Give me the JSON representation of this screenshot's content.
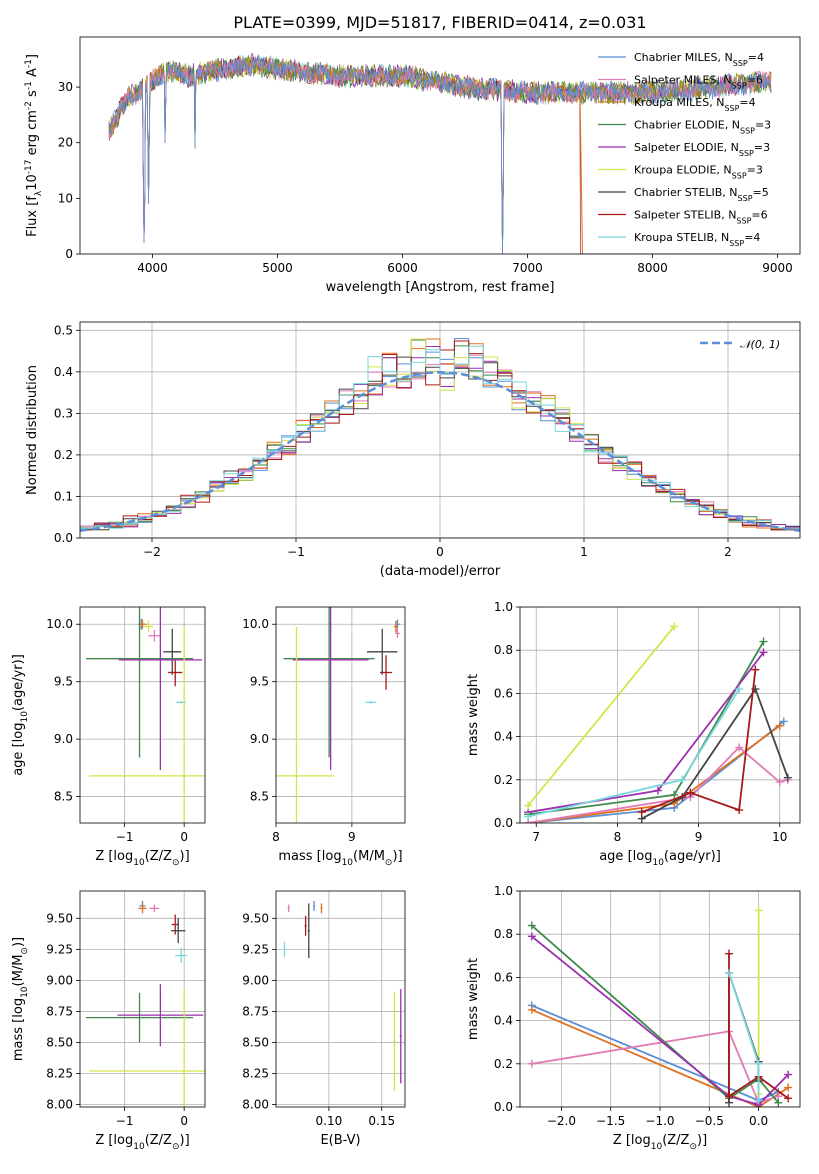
{
  "figure": {
    "title": "PLATE=0399, MJD=51817, FIBERID=0414, z=0.031"
  },
  "chart_data": [
    {
      "id": "spectrum",
      "type": "line",
      "xlabel": "wavelength [Angstrom, rest frame]",
      "ylabel": "Flux [f$_\\lambda$10$^{-17}$ erg cm$^{-2}$ s$^{-1}$ A$^{-1}$]",
      "xlim": [
        3420,
        9180
      ],
      "ylim": [
        0,
        39
      ],
      "xticks": [
        4000,
        5000,
        6000,
        7000,
        8000,
        9000
      ],
      "yticks": [
        0,
        10,
        20,
        30
      ],
      "legend_position": "top-right",
      "series": [
        {
          "name": "Chabrier MILES, N$_{SSP}$=4",
          "color": "#5b8fd6"
        },
        {
          "name": "Salpeter MILES, N$_{SSP}$=6",
          "color": "#e07bb5"
        },
        {
          "name": "Kroupa MILES, N$_{SSP}$=4",
          "color": "#b8860b"
        },
        {
          "name": "Chabrier ELODIE, N$_{SSP}$=3",
          "color": "#3f8a4a"
        },
        {
          "name": "Salpeter ELODIE, N$_{SSP}$=3",
          "color": "#9b2fae"
        },
        {
          "name": "Kroupa ELODIE, N$_{SSP}$=3",
          "color": "#d6e34a"
        },
        {
          "name": "Chabrier STELIB, N$_{SSP}$=5",
          "color": "#444444"
        },
        {
          "name": "Salpeter STELIB, N$_{SSP}$=6",
          "color": "#a81919"
        },
        {
          "name": "Kroupa STELIB, N$_{SSP}$=4",
          "color": "#79d6dd"
        }
      ],
      "continuum": {
        "x": [
          3650,
          3800,
          3950,
          4100,
          4300,
          4500,
          4800,
          5100,
          5500,
          6000,
          6500,
          7000,
          7500,
          8000,
          8500,
          8900
        ],
        "y": [
          22,
          28,
          30,
          33,
          32,
          33,
          34,
          33,
          32,
          32,
          30,
          29,
          29,
          29,
          30,
          31
        ]
      },
      "absorption_lines": [
        {
          "x": 3933,
          "y": 0
        },
        {
          "x": 3968,
          "y": 9
        },
        {
          "x": 4101,
          "y": 18
        },
        {
          "x": 4340,
          "y": 19
        },
        {
          "x": 5430,
          "y": 27
        },
        {
          "x": 6300,
          "y": 27
        },
        {
          "x": 6800,
          "y": 0
        }
      ],
      "orange_drop_x": 7420
    },
    {
      "id": "residuals",
      "type": "histogram",
      "xlabel": "(data-model)/error",
      "ylabel": "Normed distribution",
      "xlim": [
        -2.5,
        2.5
      ],
      "ylim": [
        0,
        0.52
      ],
      "xticks": [
        -2,
        -1,
        0,
        1,
        2
      ],
      "yticks": [
        0.0,
        0.1,
        0.2,
        0.3,
        0.4,
        0.5
      ],
      "legend": [
        {
          "name": "$\\mathcal{N}(0, 1)$",
          "color": "#5b8fd6",
          "style": "dashed"
        }
      ],
      "series_colors": [
        "#5b8fd6",
        "#e07bb5",
        "#e0701f",
        "#3f8a4a",
        "#9b2fae",
        "#d6e34a",
        "#444444",
        "#a81919",
        "#79d6dd"
      ]
    },
    {
      "id": "age_vs_Z",
      "type": "errorbar",
      "xlabel": "Z [log$_{10}$(Z/Z$_\\odot$)]",
      "ylabel": "age  [log$_{10}$(age/yr)]",
      "xlim": [
        -1.75,
        0.35
      ],
      "ylim": [
        8.27,
        10.15
      ],
      "xticks": [
        -1,
        0
      ],
      "yticks": [
        8.5,
        9.0,
        9.5,
        10.0
      ],
      "points": [
        {
          "x": -0.72,
          "y": 10.0,
          "xe": 0.05,
          "ye": 0.05,
          "color": "#5b8fd6"
        },
        {
          "x": -0.7,
          "y": 10.0,
          "xe": 0.07,
          "ye": 0.04,
          "color": "#e0701f"
        },
        {
          "x": -0.6,
          "y": 9.98,
          "xe": 0.08,
          "ye": 0.05,
          "color": "#d6e34a"
        },
        {
          "x": -0.5,
          "y": 9.9,
          "xe": 0.1,
          "ye": 0.05,
          "color": "#e07bb5"
        },
        {
          "x": -0.2,
          "y": 9.76,
          "xe": 0.15,
          "ye": 0.2,
          "color": "#444444"
        },
        {
          "x": -0.15,
          "y": 9.58,
          "xe": 0.12,
          "ye": 0.12,
          "color": "#a81919"
        },
        {
          "x": -0.05,
          "y": 9.32,
          "xe": 0.08,
          "ye": 0.01,
          "color": "#79d6dd"
        },
        {
          "x": -0.75,
          "y": 9.7,
          "xe": 0.9,
          "ye": 0.86,
          "color": "#3f8a4a"
        },
        {
          "x": -0.4,
          "y": 9.69,
          "xe": 0.7,
          "ye": 0.96,
          "color": "#9b2fae"
        },
        {
          "x": 0.0,
          "y": 8.68,
          "xe": 1.6,
          "ye": 1.3,
          "color": "#d6e34a"
        }
      ]
    },
    {
      "id": "age_vs_mass",
      "type": "errorbar",
      "xlabel": "mass [log$_{10}$(M/M$_\\odot$)]",
      "xlim": [
        8.0,
        9.7
      ],
      "ylim": [
        8.27,
        10.15
      ],
      "xticks": [
        8,
        9
      ],
      "yticks": [
        8.5,
        9.0,
        9.5,
        10.0
      ],
      "points": [
        {
          "x": 9.6,
          "y": 10.0,
          "xe": 0.03,
          "ye": 0.04,
          "color": "#5b8fd6"
        },
        {
          "x": 9.58,
          "y": 9.98,
          "xe": 0.03,
          "ye": 0.05,
          "color": "#e0701f"
        },
        {
          "x": 9.6,
          "y": 9.92,
          "xe": 0.03,
          "ye": 0.04,
          "color": "#e07bb5"
        },
        {
          "x": 9.4,
          "y": 9.76,
          "xe": 0.2,
          "ye": 0.2,
          "color": "#444444"
        },
        {
          "x": 9.45,
          "y": 9.58,
          "xe": 0.08,
          "ye": 0.15,
          "color": "#a81919"
        },
        {
          "x": 9.25,
          "y": 9.32,
          "xe": 0.07,
          "ye": 0.01,
          "color": "#79d6dd"
        },
        {
          "x": 8.7,
          "y": 9.7,
          "xe": 0.6,
          "ye": 0.86,
          "color": "#3f8a4a"
        },
        {
          "x": 8.72,
          "y": 9.69,
          "xe": 0.5,
          "ye": 0.96,
          "color": "#9b2fae"
        },
        {
          "x": 8.27,
          "y": 8.68,
          "xe": 0.5,
          "ye": 1.3,
          "color": "#d6e34a"
        }
      ]
    },
    {
      "id": "massweight_vs_age",
      "type": "line",
      "xlabel": "age  [log$_{10}$(age/yr)]",
      "ylabel": "mass weight",
      "xlim": [
        6.8,
        10.25
      ],
      "ylim": [
        0,
        1.0
      ],
      "xticks": [
        7,
        8,
        9,
        10
      ],
      "yticks": [
        0.0,
        0.2,
        0.4,
        0.6,
        0.8,
        1.0
      ],
      "series": [
        {
          "color": "#5b8fd6",
          "x": [
            6.9,
            8.7,
            10.05
          ],
          "y": [
            0.0,
            0.07,
            0.47
          ]
        },
        {
          "color": "#e0701f",
          "x": [
            6.9,
            8.7,
            10.0
          ],
          "y": [
            0.0,
            0.09,
            0.45
          ]
        },
        {
          "color": "#e07bb5",
          "x": [
            6.9,
            8.9,
            9.5,
            10.0,
            10.1
          ],
          "y": [
            0.0,
            0.12,
            0.35,
            0.19,
            0.2
          ]
        },
        {
          "color": "#3f8a4a",
          "x": [
            6.9,
            8.7,
            9.8
          ],
          "y": [
            0.04,
            0.13,
            0.84
          ]
        },
        {
          "color": "#9b2fae",
          "x": [
            6.9,
            8.5,
            9.8
          ],
          "y": [
            0.05,
            0.15,
            0.79
          ]
        },
        {
          "color": "#d6e34a",
          "x": [
            6.9,
            8.7
          ],
          "y": [
            0.08,
            0.91
          ]
        },
        {
          "color": "#444444",
          "x": [
            8.3,
            8.8,
            9.7,
            10.1
          ],
          "y": [
            0.02,
            0.12,
            0.62,
            0.21
          ]
        },
        {
          "color": "#a81919",
          "x": [
            8.3,
            8.9,
            9.5,
            9.7
          ],
          "y": [
            0.05,
            0.14,
            0.06,
            0.71
          ]
        },
        {
          "color": "#79d6dd",
          "x": [
            6.9,
            8.8,
            9.5
          ],
          "y": [
            0.03,
            0.2,
            0.62
          ]
        }
      ]
    },
    {
      "id": "mass_vs_Z",
      "type": "errorbar",
      "xlabel": "Z [log$_{10}$(Z/Z$_\\odot$)]",
      "ylabel": "mass [log$_{10}$(M/M$_\\odot$)]",
      "xlim": [
        -1.75,
        0.35
      ],
      "ylim": [
        7.98,
        9.72
      ],
      "xticks": [
        -1,
        0
      ],
      "yticks": [
        8.0,
        8.25,
        8.5,
        8.75,
        9.0,
        9.25,
        9.5
      ],
      "points": [
        {
          "x": -0.7,
          "y": 9.6,
          "xe": 0.05,
          "ye": 0.04,
          "color": "#5b8fd6"
        },
        {
          "x": -0.7,
          "y": 9.58,
          "xe": 0.07,
          "ye": 0.04,
          "color": "#e0701f"
        },
        {
          "x": -0.5,
          "y": 9.58,
          "xe": 0.08,
          "ye": 0.03,
          "color": "#e07bb5"
        },
        {
          "x": -0.15,
          "y": 9.45,
          "xe": 0.06,
          "ye": 0.08,
          "color": "#a81919"
        },
        {
          "x": -0.1,
          "y": 9.4,
          "xe": 0.12,
          "ye": 0.1,
          "color": "#444444"
        },
        {
          "x": -0.05,
          "y": 9.2,
          "xe": 0.1,
          "ye": 0.06,
          "color": "#79d6dd"
        },
        {
          "x": -0.75,
          "y": 8.7,
          "xe": 0.9,
          "ye": 0.2,
          "color": "#3f8a4a"
        },
        {
          "x": -0.4,
          "y": 8.72,
          "xe": 0.72,
          "ye": 0.25,
          "color": "#9b2fae"
        },
        {
          "x": 0.0,
          "y": 8.27,
          "xe": 1.6,
          "ye": 0.65,
          "color": "#d6e34a"
        }
      ]
    },
    {
      "id": "mass_vs_EBV",
      "type": "errorbar",
      "xlabel": "E(B-V)",
      "xlim": [
        0.05,
        0.172
      ],
      "ylim": [
        7.98,
        9.72
      ],
      "xticks": [
        0.1,
        0.15
      ],
      "yticks": [
        8.0,
        8.25,
        8.5,
        8.75,
        9.0,
        9.25,
        9.5
      ],
      "points": [
        {
          "x": 0.086,
          "y": 9.6,
          "xe": 0.001,
          "ye": 0.04,
          "color": "#5b8fd6"
        },
        {
          "x": 0.093,
          "y": 9.58,
          "xe": 0.001,
          "ye": 0.04,
          "color": "#e0701f"
        },
        {
          "x": 0.062,
          "y": 9.58,
          "xe": 0.001,
          "ye": 0.03,
          "color": "#e07bb5"
        },
        {
          "x": 0.078,
          "y": 9.44,
          "xe": 0.001,
          "ye": 0.08,
          "color": "#a81919"
        },
        {
          "x": 0.081,
          "y": 9.4,
          "xe": 0.001,
          "ye": 0.22,
          "color": "#444444"
        },
        {
          "x": 0.058,
          "y": 9.25,
          "xe": 0.001,
          "ye": 0.06,
          "color": "#79d6dd"
        },
        {
          "x": 0.168,
          "y": 8.55,
          "xe": 0.001,
          "ye": 0.38,
          "color": "#9b2fae"
        },
        {
          "x": 0.162,
          "y": 8.51,
          "xe": 0.001,
          "ye": 0.4,
          "color": "#d6e34a"
        }
      ]
    },
    {
      "id": "massweight_vs_Z",
      "type": "line",
      "xlabel": "Z [log$_{10}$(Z/Z$_\\odot$)]",
      "ylabel": "mass weight",
      "xlim": [
        -2.42,
        0.42
      ],
      "ylim": [
        0,
        1.0
      ],
      "xticks": [
        -2.0,
        -1.5,
        -1.0,
        -0.5,
        0.0
      ],
      "yticks": [
        0.0,
        0.2,
        0.4,
        0.6,
        0.8,
        1.0
      ],
      "series": [
        {
          "color": "#5b8fd6",
          "x": [
            -2.3,
            0.0,
            0.2
          ],
          "y": [
            0.47,
            0.03,
            0.07
          ]
        },
        {
          "color": "#e0701f",
          "x": [
            -2.3,
            0.0,
            0.3
          ],
          "y": [
            0.45,
            0.0,
            0.09
          ]
        },
        {
          "color": "#e07bb5",
          "x": [
            -2.3,
            -0.3,
            0.0,
            0.2
          ],
          "y": [
            0.2,
            0.35,
            0.02,
            0.05
          ]
        },
        {
          "color": "#3f8a4a",
          "x": [
            -2.3,
            -0.3,
            0.0,
            0.2
          ],
          "y": [
            0.84,
            0.04,
            0.13,
            0.02
          ]
        },
        {
          "color": "#9b2fae",
          "x": [
            -2.3,
            -0.3,
            0.0,
            0.3
          ],
          "y": [
            0.79,
            0.05,
            0.01,
            0.15
          ]
        },
        {
          "color": "#d6e34a",
          "x": [
            0.0,
            0.0
          ],
          "y": [
            0.91,
            0.06
          ]
        },
        {
          "color": "#444444",
          "x": [
            -0.3,
            -0.3,
            0.0,
            0.0
          ],
          "y": [
            0.02,
            0.62,
            0.21,
            0.12
          ]
        },
        {
          "color": "#a81919",
          "x": [
            -0.3,
            -0.3,
            0.0,
            0.3
          ],
          "y": [
            0.71,
            0.05,
            0.14,
            0.04
          ]
        },
        {
          "color": "#79d6dd",
          "x": [
            -0.3,
            0.0,
            0.0
          ],
          "y": [
            0.62,
            0.2,
            0.03
          ]
        }
      ]
    }
  ]
}
